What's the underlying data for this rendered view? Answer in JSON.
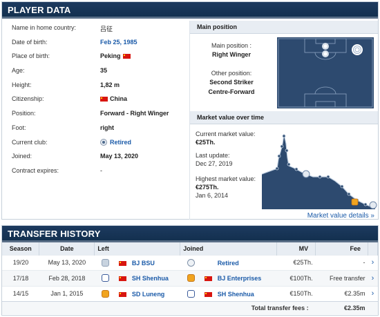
{
  "player_data": {
    "title": "Player data",
    "rows": [
      {
        "label": "Name in home country:",
        "value": "吕征"
      },
      {
        "label": "Date of birth:",
        "value": "Feb 25, 1985"
      },
      {
        "label": "Place of birth:",
        "value": "Peking"
      },
      {
        "label": "Age:",
        "value": "35"
      },
      {
        "label": "Height:",
        "value": "1,82 m"
      },
      {
        "label": "Citizenship:",
        "value": "China"
      },
      {
        "label": "Position:",
        "value": "Forward - Right Winger"
      },
      {
        "label": "Foot:",
        "value": "right"
      },
      {
        "label": "Current club:",
        "value": "Retired"
      },
      {
        "label": "Joined:",
        "value": "May 13, 2020"
      },
      {
        "label": "Contract expires:",
        "value": "-"
      }
    ]
  },
  "main_position": {
    "header": "Main position",
    "main_label": "Main position :",
    "main_value": "Right Winger",
    "other_label": "Other position:",
    "other_values": [
      "Second Striker",
      "Centre-Forward"
    ]
  },
  "market_value": {
    "header": "Market value over time",
    "current_label": "Current market value:",
    "current_value": "€25Th.",
    "last_update_label": "Last update:",
    "last_update_value": "Dec 27, 2019",
    "highest_label": "Highest market value:",
    "highest_value": "€275Th.",
    "highest_date": "Jan 6, 2014",
    "details_link": "Market value details »"
  },
  "transfer_history": {
    "title": "Transfer history",
    "columns": [
      "Season",
      "Date",
      "Left",
      "Joined",
      "MV",
      "Fee"
    ],
    "rows": [
      {
        "season": "19/20",
        "date": "May 13, 2020",
        "left": "BJ BSU",
        "joined": "Retired",
        "mv": "€25Th.",
        "fee": "-"
      },
      {
        "season": "17/18",
        "date": "Feb 28, 2018",
        "left": "SH Shenhua",
        "joined": "BJ Enterprises",
        "mv": "€100Th.",
        "fee": "Free transfer"
      },
      {
        "season": "14/15",
        "date": "Jan 1, 2015",
        "left": "SD Luneng",
        "joined": "SH Shenhua",
        "mv": "€150Th.",
        "fee": "€2.35m"
      }
    ],
    "total_label": "Total transfer fees :",
    "total_value": "€2.35m"
  },
  "colors": {
    "header_bg": "#1d3a5f",
    "link": "#1a5aa8",
    "pitch": "#2d4a6f",
    "chart_fill": "#2d4a6f",
    "flag_red": "#d8150f"
  },
  "icons": [
    "flag-china-icon",
    "club-crest-icon",
    "chevron-right-icon",
    "pitch-diagram",
    "market-value-chart"
  ]
}
